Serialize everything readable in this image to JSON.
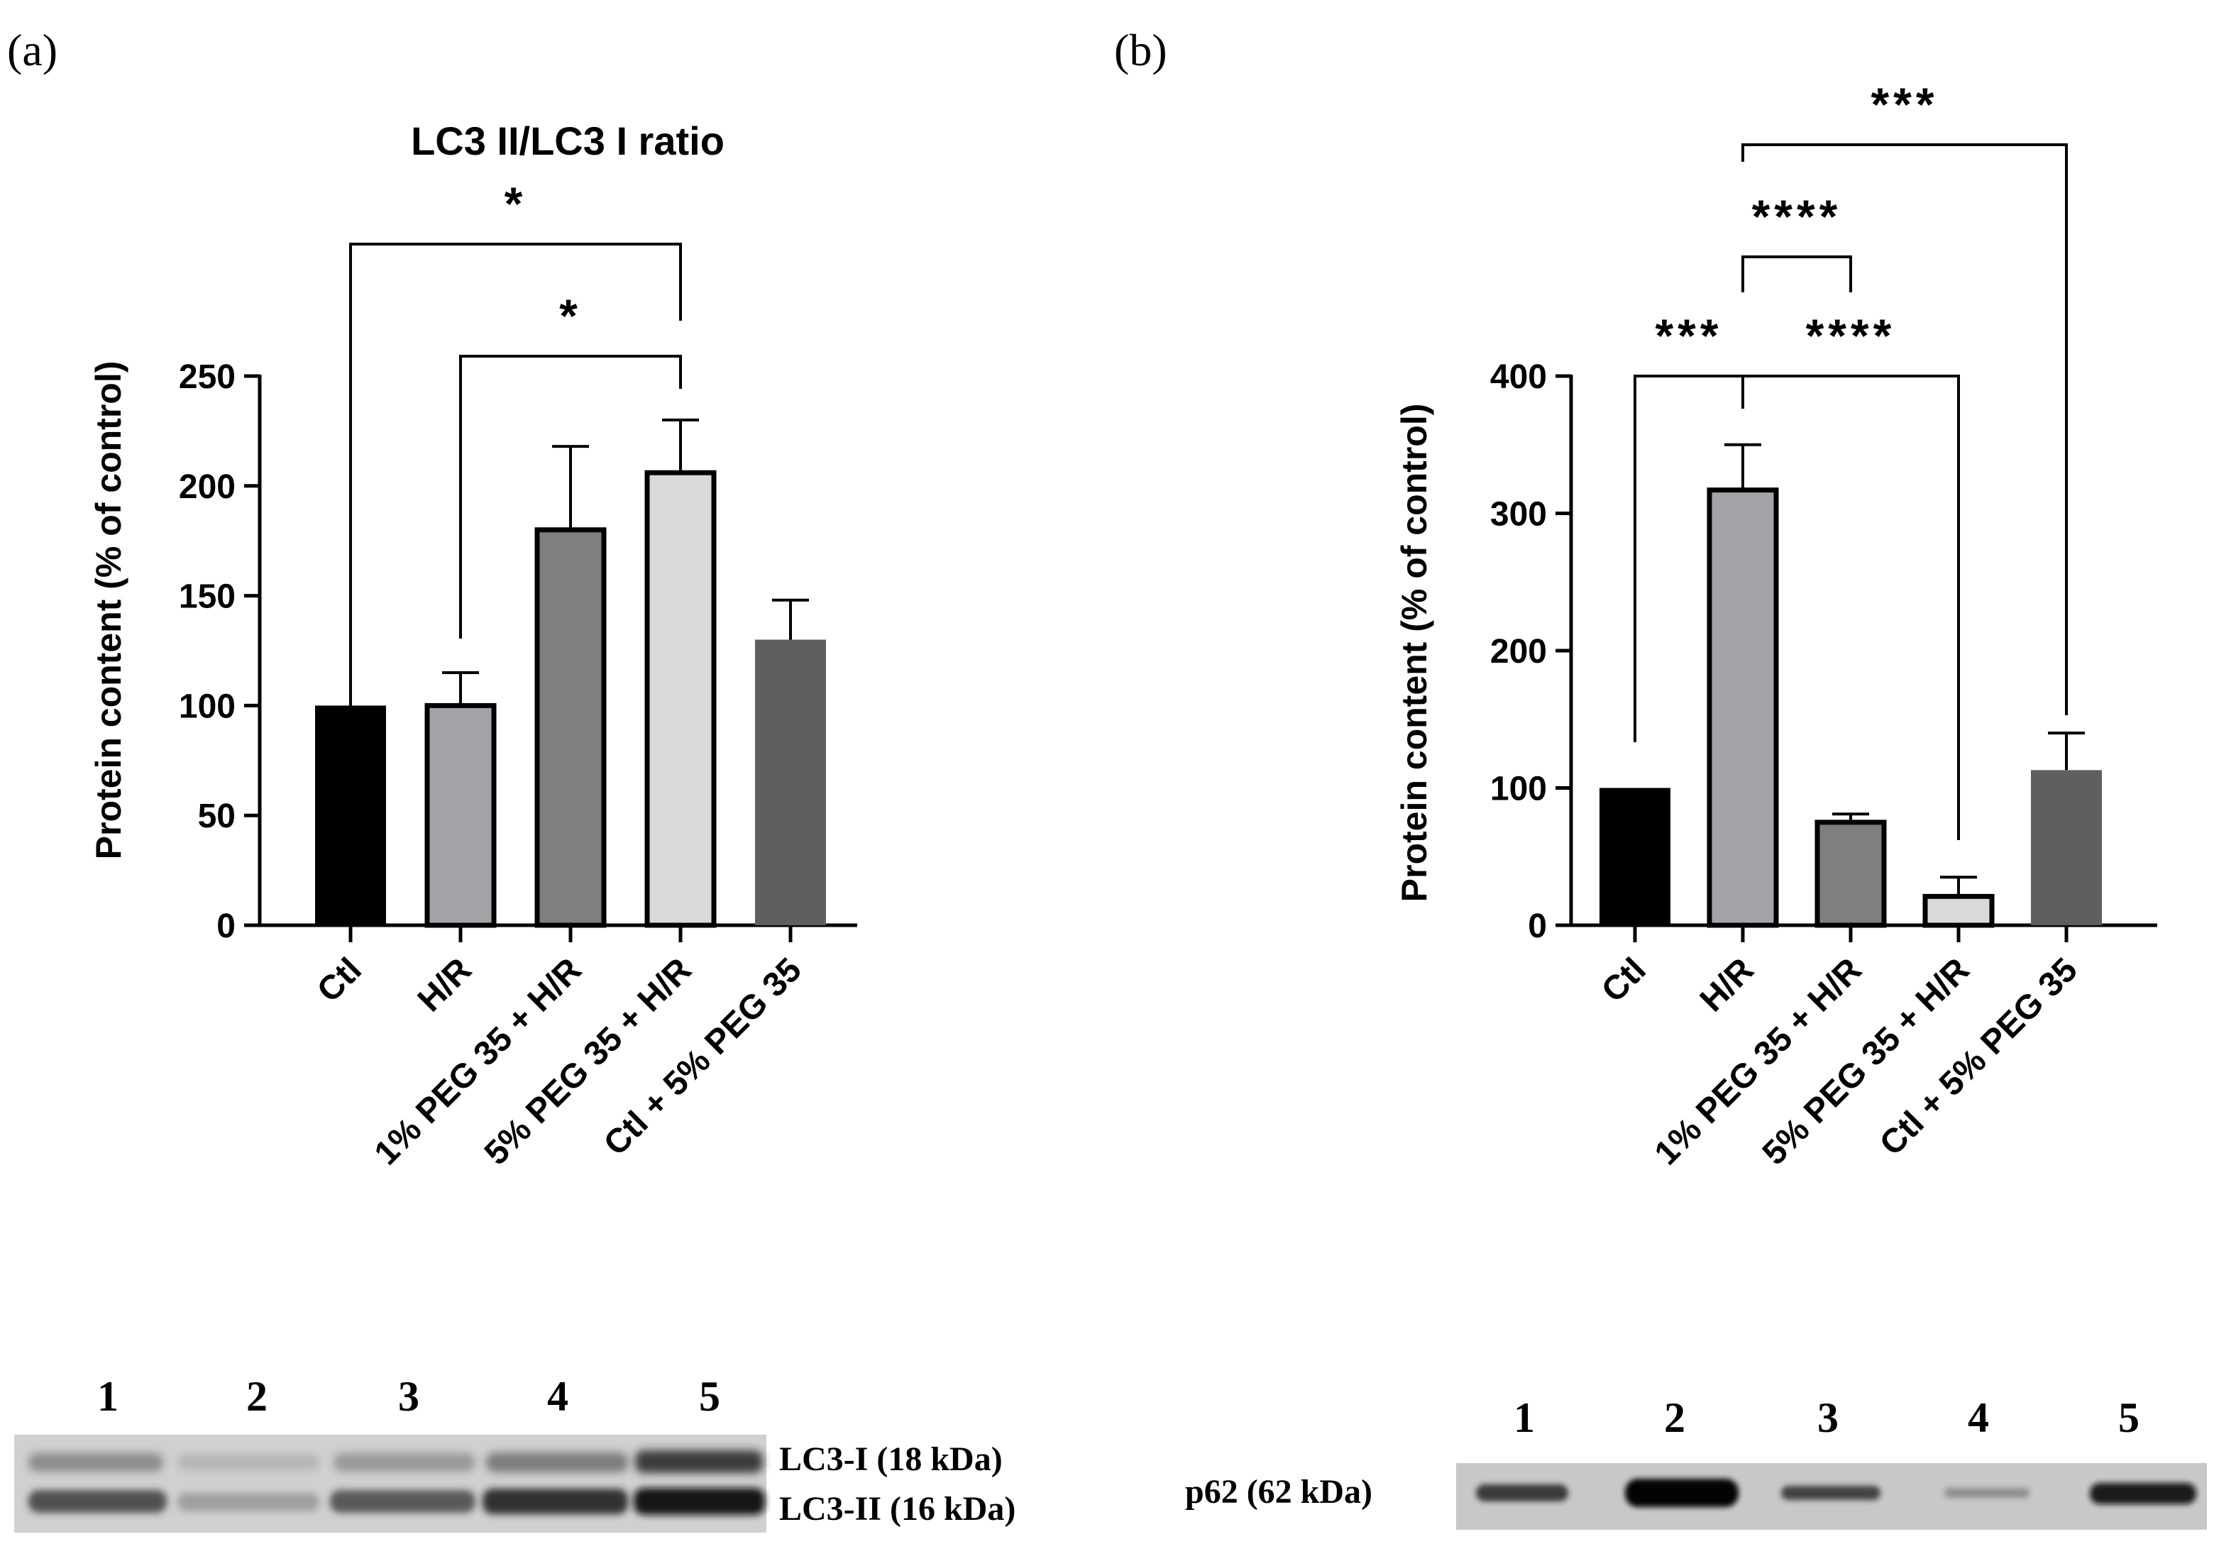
{
  "panel_a": {
    "panel_label": "(a)",
    "blot_lanes": [
      "1",
      "2",
      "3",
      "4",
      "5"
    ],
    "blot_labels": [
      "LC3-I (18 kDa)",
      "LC3-II (16 kDa)"
    ]
  },
  "panel_b": {
    "panel_label": "(b)",
    "blot_lanes": [
      "1",
      "2",
      "3",
      "4",
      "5"
    ],
    "blot_label": "p62 (62 kDa)"
  },
  "chart_data": [
    {
      "type": "bar",
      "title": "LC3 II/LC3 I ratio",
      "xlabel": "",
      "ylabel": "Protein content (% of control)",
      "categories": [
        "Ctl",
        "H/R",
        "1% PEG 35 + H/R",
        "5% PEG 35 + H/R",
        "Ctl + 5% PEG 35"
      ],
      "values": [
        100,
        100,
        180,
        206,
        130
      ],
      "errors": [
        0,
        15,
        38,
        24,
        18
      ],
      "bar_colors": [
        "#000000",
        "#a3a3a8",
        "#7f7f7f",
        "#d9d9d9",
        "#5f5f5f"
      ],
      "bordered": [
        false,
        true,
        true,
        true,
        false
      ],
      "ylim": [
        0,
        250
      ],
      "yticks": [
        0,
        50,
        100,
        150,
        200,
        250
      ],
      "significance": [
        {
          "from": 0,
          "to": 3,
          "label": "*"
        },
        {
          "from": 1,
          "to": 3,
          "label": "*"
        }
      ]
    },
    {
      "type": "bar",
      "title": "",
      "xlabel": "",
      "ylabel": "Protein content (% of control)",
      "categories": [
        "Ctl",
        "H/R",
        "1% PEG 35 + H/R",
        "5% PEG 35 + H/R",
        "Ctl + 5% PEG 35"
      ],
      "values": [
        100,
        317,
        75,
        21,
        113
      ],
      "errors": [
        0,
        33,
        6,
        14,
        27
      ],
      "bar_colors": [
        "#000000",
        "#a3a3a8",
        "#7f7f7f",
        "#d9d9d9",
        "#5f5f5f"
      ],
      "bordered": [
        false,
        true,
        true,
        true,
        false
      ],
      "ylim": [
        0,
        400
      ],
      "yticks": [
        0,
        100,
        200,
        300,
        400
      ],
      "significance": [
        {
          "from": 1,
          "to": 4,
          "label": "***"
        },
        {
          "from": 1,
          "to": 2,
          "label": "****"
        },
        {
          "from": 0,
          "to": 1,
          "label": "***"
        },
        {
          "from": 1,
          "to": 3,
          "label": "****"
        }
      ]
    }
  ]
}
